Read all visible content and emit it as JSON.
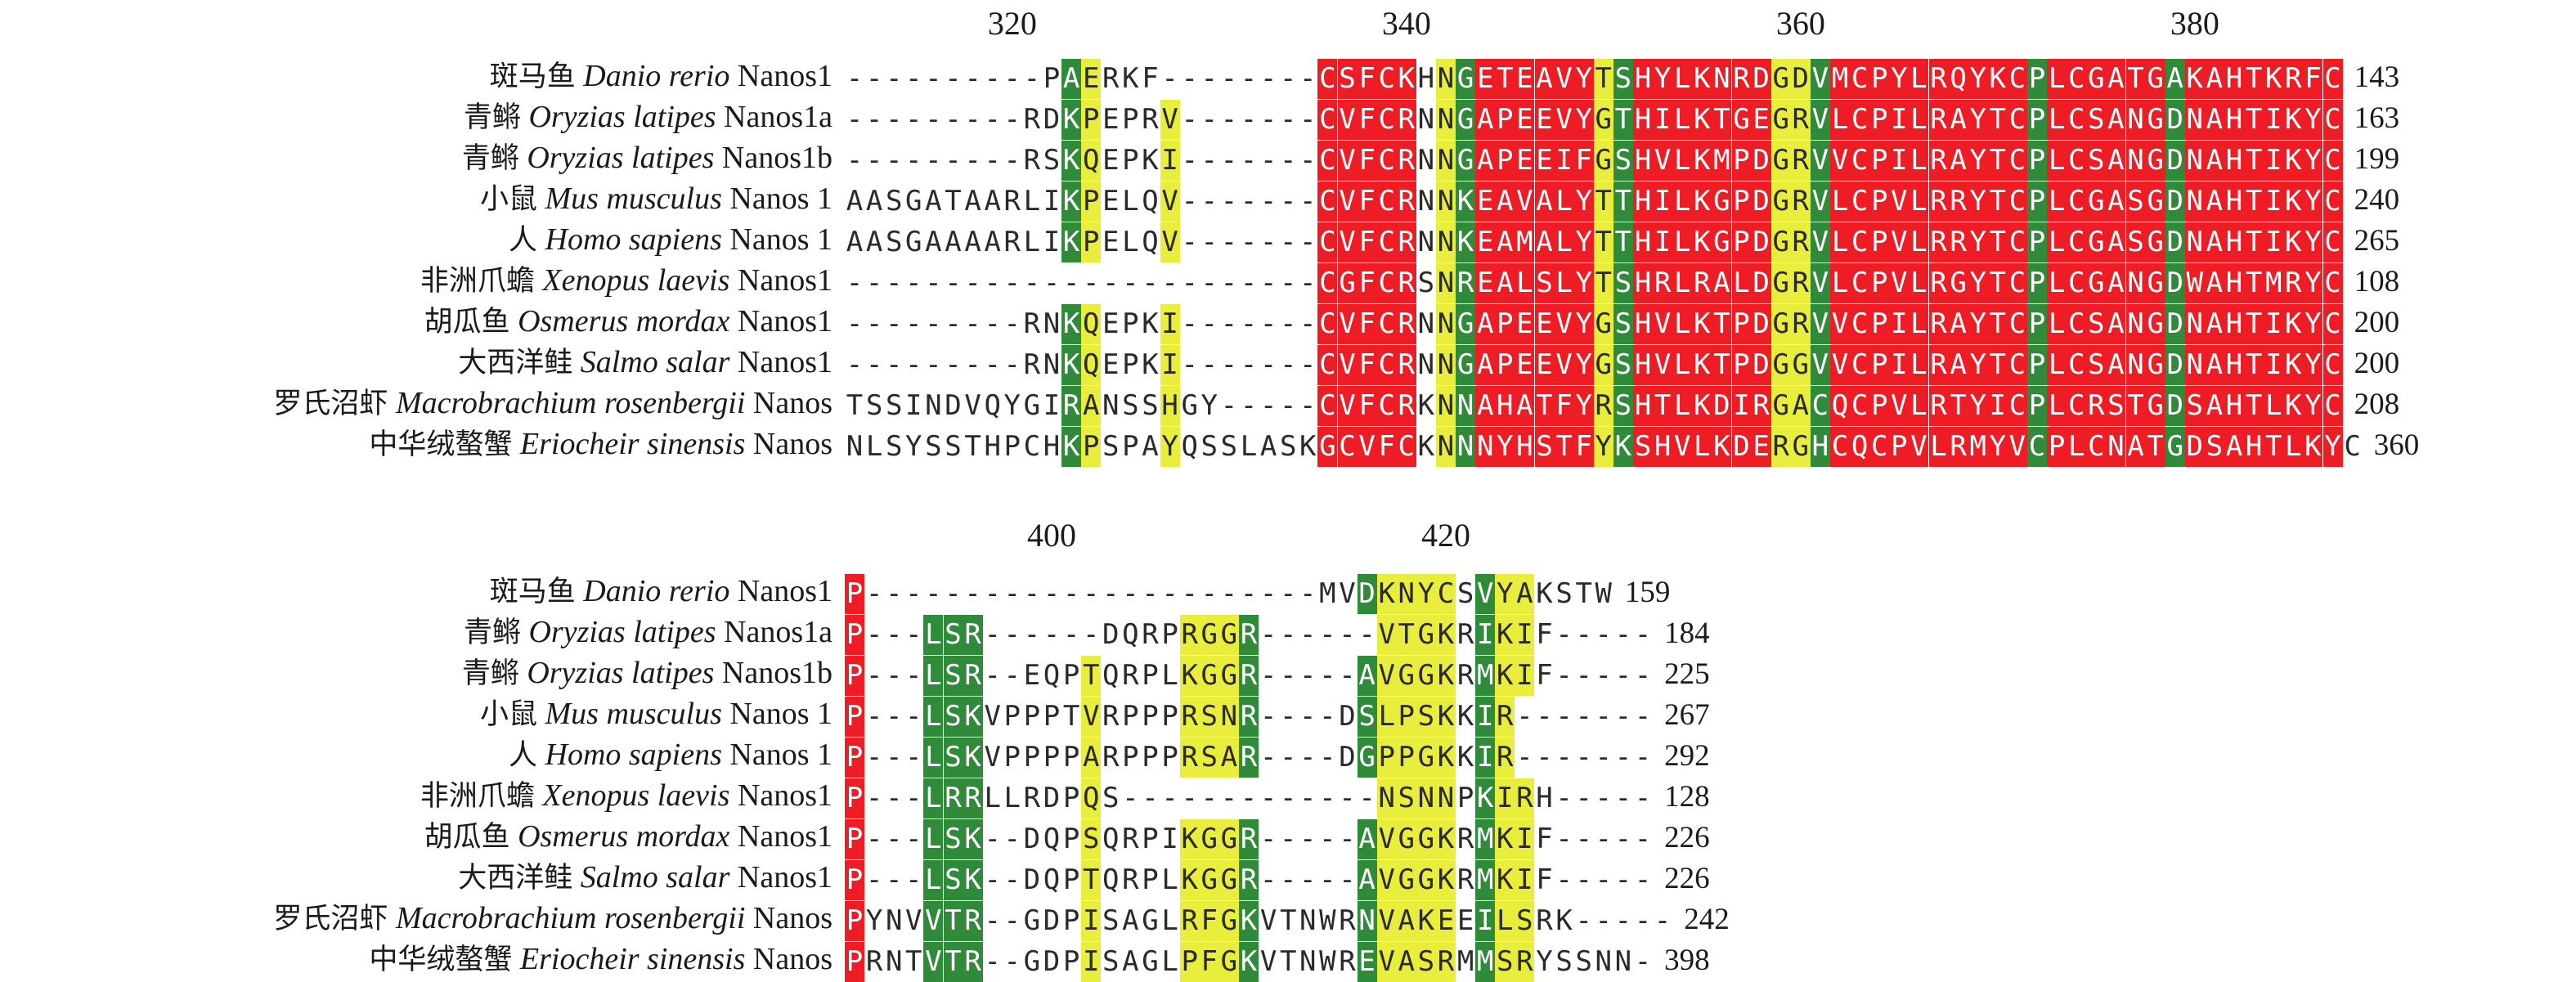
{
  "rows": [
    {
      "cn": "斑马鱼",
      "species": "Danio rerio",
      "gene": "Nanos1"
    },
    {
      "cn": "青鳉",
      "species": "Oryzias latipes",
      "gene": "Nanos1a"
    },
    {
      "cn": "青鳉",
      "species": "Oryzias latipes",
      "gene": "Nanos1b"
    },
    {
      "cn": "小鼠",
      "species": "Mus musculus",
      "gene": "Nanos 1"
    },
    {
      "cn": "人",
      "species": "Homo sapiens",
      "gene": "Nanos 1"
    },
    {
      "cn": "非洲爪蟾",
      "species": "Xenopus laevis",
      "gene": "Nanos1"
    },
    {
      "cn": "胡瓜鱼",
      "species": "Osmerus mordax",
      "gene": "Nanos1"
    },
    {
      "cn": "大西洋鲑",
      "species": "Salmo salar",
      "gene": "Nanos1"
    },
    {
      "cn": "罗氏沼虾",
      "species": "Macrobrachium rosenbergii",
      "gene": "Nanos"
    },
    {
      "cn": "中华绒螯蟹",
      "species": "Eriocheir sinensis",
      "gene": "Nanos"
    }
  ],
  "blocks": [
    {
      "ruler": [
        {
          "label": "320",
          "col": 4
        },
        {
          "label": "340",
          "col": 14
        },
        {
          "label": "360",
          "col": 24
        },
        {
          "label": "380",
          "col": 34
        }
      ],
      "sequences": [
        "----------PAERKF--------CSFCKHNGETEAVYTSHYLKNRDGDVMCPYLRQYKCPLCGATGAKAHTKRFC",
        "---------RDKPEPRV-------CVFCRNNGAPEEVYGTHILKTGEGRVLCPILRAYTCPLCSANGDNAHTIKYC",
        "---------RSKQEPKI-------CVFCRNNGAPEEIFGSHVLKMPDGRVVCPILRAYTCPLCSANGDNAHTIKYC",
        "AASGATAARLIKPELQV-------CVFCRNNKEAVALYTTHILKGPDGRVLCPVLRRYTCPLCGASGDNAHTIKYC",
        "AASGAAAARLIKPELQV-------CVFCRNNKEAMALYTTHILKGPDGRVLCPVLRRYTCPLCGASGDNAHTIKYC",
        "------------------------CGFCRSNREALSLYTSHRLRALDGRVLCPVLRGYTCPLCGANGDWAHTMRYC",
        "---------RNKQEPKI-------CVFCRNNGAPEEVYGSHVLKTPDGRVVCPILRAYTCPLCSANGDNAHTIKYC",
        "---------RNKQEPKI-------CVFCRNNGAPEEVYGSHVLKTPDGGVVCPILRAYTCPLCSANGDNAHTIKYC",
        "TSSINDVQYGIRANSSHGY-----CVFCRKNNAHATFYRSHTLKDIRGACQCPVLRTYICPLCRSTGDSAHTLKYC",
        "NLSYSSTHPCHKPSPAYQSSLASKGCVFCKNNNYHSTFYKSHVLKDERGHCQCPVLRMYVCPLCNATGDSAHTLKYC"
      ],
      "end_numbers": [
        "143",
        "163",
        "199",
        "240",
        "265",
        "108",
        "200",
        "200",
        "208",
        "360"
      ]
    },
    {
      "ruler": [
        {
          "label": "400",
          "col": 5
        },
        {
          "label": "420",
          "col": 15
        }
      ],
      "sequences": [
        "P-----------------------MVDKNYCSVYAKSTW",
        "P---LSR------DQRPRGGR------VTGKRIKIF-----",
        "P---LSR--EQPTQRPLKGGR-----AVGGKRMKIF-----",
        "P---LSKVPPPTVRPPPRSNR----DSLPSKKIR-------",
        "P---LSKVPPPPARPPPRSAR----DGPPGKKIR-------",
        "P---LRRLLRDPQS-------------NSNNPKIRH-----",
        "P---LSK--DQPSQRPIKGGR-----AVGGKRMKIF-----",
        "P---LSK--DQPTQRPLKGGR-----AVGGKRMKIF-----",
        "PYNVVTR--GDPISAGLRFGKVTNWRNVAKEEILSRK-----",
        "PRNTVTR--GDPISAGLPFGKVTNWREVASRMMSRYSSNN-"
      ],
      "end_numbers": [
        "159",
        "184",
        "225",
        "267",
        "292",
        "128",
        "226",
        "226",
        "242",
        "398"
      ]
    }
  ],
  "colors": {
    "red": "#ee1c25",
    "green": "#2f8a3a",
    "yellow": "#e9ee3c"
  }
}
